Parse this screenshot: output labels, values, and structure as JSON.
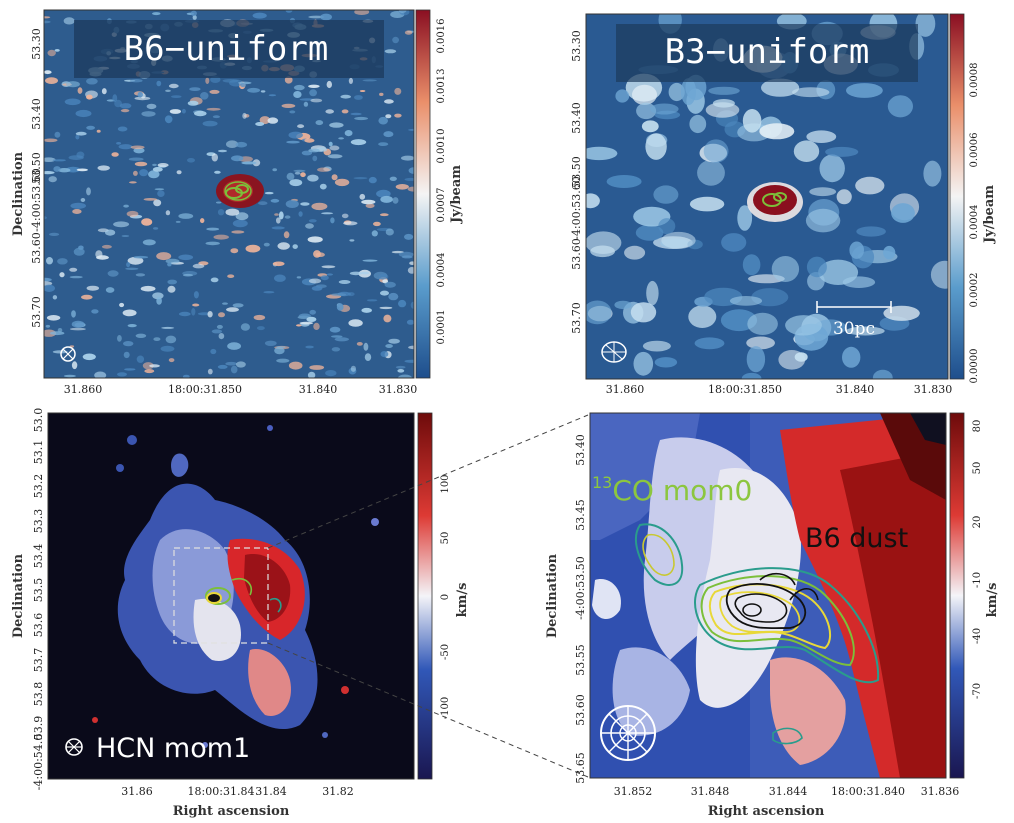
{
  "figure": {
    "panels": [
      {
        "id": "b6-uniform",
        "title": "B6−uniform",
        "ylabel": "Declination",
        "dec_ticks": [
          "53.30",
          "53.40",
          "53.50",
          "-4:00:53.60",
          "53.60",
          "53.70"
        ],
        "ra_ticks": [
          "31.860",
          "18:00:31.850",
          "31.840",
          "31.830"
        ],
        "colorbar": {
          "label": "Jy/beam",
          "ticks": [
            "0.0001",
            "0.0004",
            "0.0007",
            "0.0010",
            "0.0013",
            "0.0016"
          ],
          "colormap": "RdBu_r"
        }
      },
      {
        "id": "b3-uniform",
        "title": "B3−uniform",
        "dec_ticks": [
          "53.30",
          "53.40",
          "53.50",
          "-4:00:53.60",
          "53.60",
          "53.70"
        ],
        "ra_ticks": [
          "31.860",
          "18:00:31.850",
          "31.840",
          "31.830"
        ],
        "scalebar_label": "30pc",
        "colorbar": {
          "label": "Jy/beam",
          "ticks": [
            "0.0000",
            "0.0002",
            "0.0004",
            "0.0006",
            "0.0008"
          ],
          "colormap": "RdBu_r"
        }
      },
      {
        "id": "hcn-mom1",
        "label": "HCN mom1",
        "ylabel": "Declination",
        "xlabel": "Right ascension",
        "dec_ticks": [
          "53.0",
          "53.1",
          "53.2",
          "53.3",
          "53.4",
          "53.5",
          "53.6",
          "53.7",
          "53.8",
          "53.9",
          "-4:00:54.0"
        ],
        "ra_ticks": [
          "31.86",
          "31.84",
          "18:00:31.84",
          "31.82"
        ],
        "colorbar": {
          "label": "km/s",
          "ticks": [
            "-100",
            "-50",
            "0",
            "50",
            "100"
          ],
          "colormap": "seismic"
        }
      },
      {
        "id": "zoom-mom1",
        "label_13co": "13",
        "label_13co_rest": "CO mom0",
        "label_b6": "B6 dust",
        "ylabel": "Declination",
        "xlabel": "Right ascension",
        "dec_ticks": [
          "53.40",
          "53.45",
          "-4:00:53.50",
          "53.55",
          "53.60",
          "53.65"
        ],
        "ra_ticks": [
          "31.852",
          "31.848",
          "31.844",
          "18:00:31.840",
          "31.836"
        ],
        "colorbar": {
          "label": "km/s",
          "ticks": [
            "-70",
            "-40",
            "-10",
            "20",
            "50",
            "80"
          ],
          "colormap": "seismic"
        }
      }
    ],
    "colors": {
      "map_background_top": "#2e5c8e",
      "map_background_mom1": "#0a0a1a",
      "contour_green": "#7cbf3a",
      "contour_teal": "#2a9c8c",
      "contour_yellow": "#e8d838",
      "contour_black": "#111111",
      "label_green": "#8cc63f"
    }
  },
  "chart_data": [
    {
      "type": "heatmap",
      "title": "B6−uniform",
      "ylabel": "Declination",
      "colorbar_label": "Jy/beam",
      "colorbar_ticks": [
        0.0001,
        0.0004,
        0.0007,
        0.001,
        0.0013,
        0.0016
      ]
    },
    {
      "type": "heatmap",
      "title": "B3−uniform",
      "colorbar_label": "Jy/beam",
      "colorbar_ticks": [
        0.0,
        0.0002,
        0.0004,
        0.0006,
        0.0008
      ]
    },
    {
      "type": "heatmap",
      "title": "HCN mom1",
      "xlabel": "Right ascension",
      "ylabel": "Declination",
      "colorbar_label": "km/s",
      "colorbar_ticks": [
        -100,
        -50,
        0,
        50,
        100
      ]
    },
    {
      "type": "heatmap",
      "title": "",
      "xlabel": "Right ascension",
      "ylabel": "Declination",
      "annotations": [
        "13CO mom0",
        "B6 dust"
      ],
      "colorbar_label": "km/s",
      "colorbar_ticks": [
        -70,
        -40,
        -10,
        20,
        50,
        80
      ]
    }
  ]
}
